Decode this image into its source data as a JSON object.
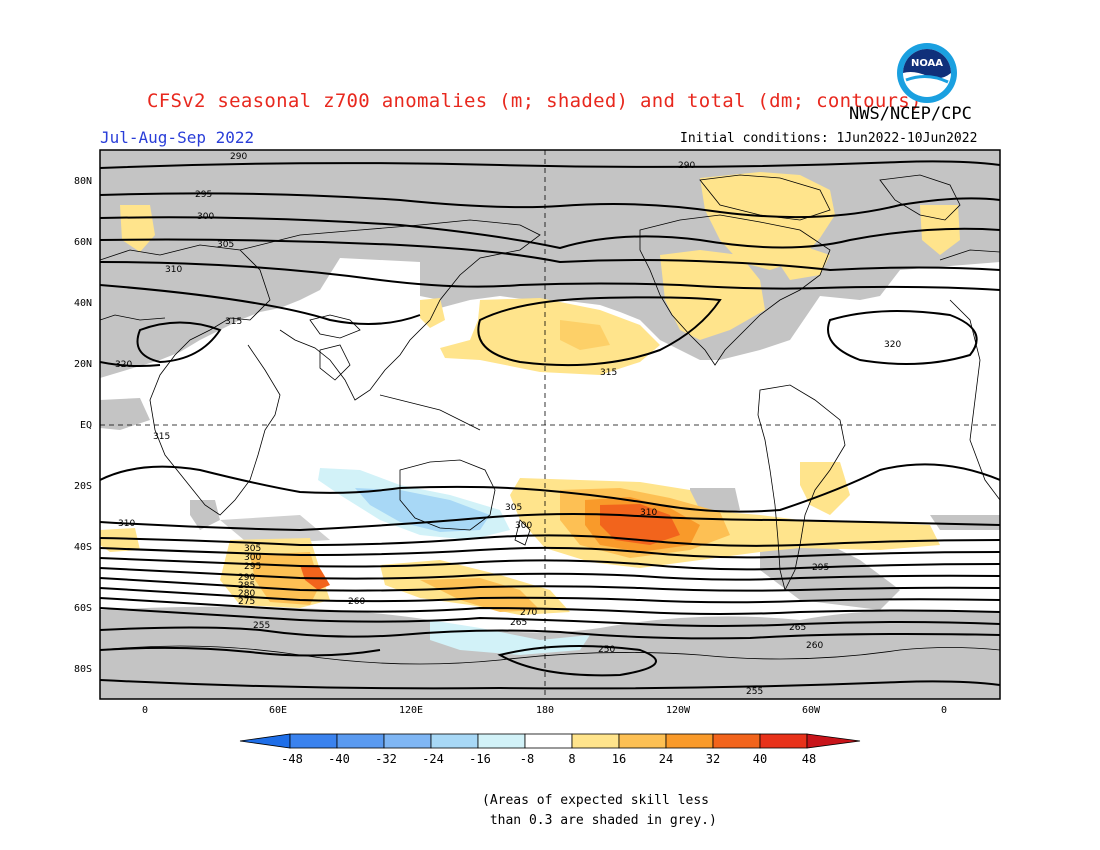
{
  "header": {
    "title": "CFSv2 seasonal z700 anomalies (m; shaded) and total (dm; contours)",
    "agency": "NWS/NCEP/CPC",
    "season": "Jul-Aug-Sep 2022",
    "initial_conditions": "Initial conditions: 1Jun2022-10Jun2022",
    "logo_text": "NOAA"
  },
  "map": {
    "projection": "cylindrical equidistant, 0–360 longitude (centered on 180)",
    "lat_labels": [
      "80N",
      "60N",
      "40N",
      "20N",
      "EQ",
      "20S",
      "40S",
      "60S",
      "80S"
    ],
    "lon_labels": [
      "0",
      "60E",
      "120E",
      "180",
      "120W",
      "60W",
      "0"
    ],
    "contour_labels": [
      "290",
      "290",
      "295",
      "300",
      "305",
      "310",
      "315",
      "320",
      "315",
      "310",
      "305",
      "300",
      "295",
      "290",
      "285",
      "280",
      "275",
      "270",
      "265",
      "260",
      "255",
      "250",
      "255",
      "260",
      "265",
      "320",
      "315",
      "310",
      "305",
      "300",
      "295"
    ]
  },
  "colorbar": {
    "ticks": [
      "-48",
      "-40",
      "-32",
      "-24",
      "-16",
      "-8",
      "8",
      "16",
      "24",
      "32",
      "40",
      "48"
    ],
    "colors": [
      "#1e6ee8",
      "#3a82ee",
      "#5a9af0",
      "#7fb6f4",
      "#a8d8f6",
      "#d2f2f8",
      "#ffffff",
      "#ffe48c",
      "#fdc054",
      "#f99a2a",
      "#f2641c",
      "#e8321a",
      "#c8141a"
    ]
  },
  "note": "(Areas of expected skill less\n than 0.3 are shaded in grey.)"
}
